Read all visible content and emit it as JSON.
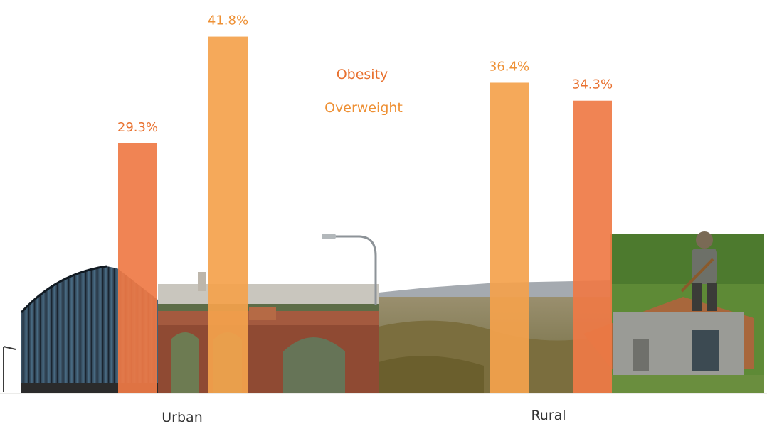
{
  "colors": {
    "obesity": "#EF7A45",
    "overweight": "#F4A24C",
    "label_obesity": "#E8702E",
    "label_overweight": "#EE9034",
    "category_text": "#333333"
  },
  "chart_data": {
    "type": "bar",
    "categories": [
      "Urban",
      "Rural"
    ],
    "series": [
      {
        "name": "Obesity",
        "values": [
          29.3,
          34.3
        ]
      },
      {
        "name": "Overweight",
        "values": [
          41.8,
          36.4
        ]
      }
    ],
    "series_order": {
      "Urban": [
        "Obesity",
        "Overweight"
      ],
      "Rural": [
        "Overweight",
        "Obesity"
      ]
    },
    "value_suffix": "%",
    "ylim": [
      0,
      45
    ],
    "legend": [
      "Obesity",
      "Overweight"
    ],
    "legend_position": "top-center",
    "data_labels": {
      "Urban": {
        "Obesity": "29.3%",
        "Overweight": "41.8%"
      },
      "Rural": {
        "Overweight": "36.4%",
        "Obesity": "34.3%"
      }
    },
    "xlabel": "",
    "ylabel": "",
    "title": "",
    "background_scenes": [
      "office-building",
      "city-aqueduct",
      "street-lamp",
      "landscape",
      "farmer-house"
    ]
  }
}
